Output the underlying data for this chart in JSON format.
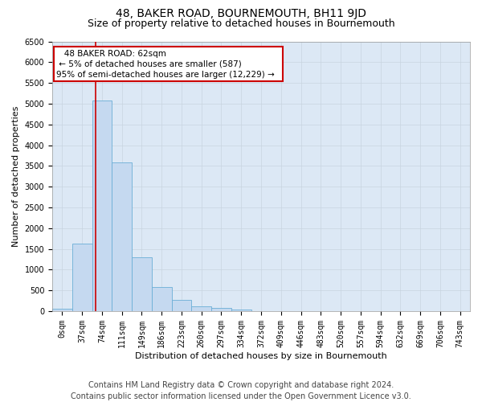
{
  "title": "48, BAKER ROAD, BOURNEMOUTH, BH11 9JD",
  "subtitle": "Size of property relative to detached houses in Bournemouth",
  "xlabel": "Distribution of detached houses by size in Bournemouth",
  "ylabel": "Number of detached properties",
  "annotation_line1": "48 BAKER ROAD: 62sqm",
  "annotation_line2": "← 5% of detached houses are smaller (587)",
  "annotation_line3": "95% of semi-detached houses are larger (12,229) →",
  "footer1": "Contains HM Land Registry data © Crown copyright and database right 2024.",
  "footer2": "Contains public sector information licensed under the Open Government Licence v3.0.",
  "bar_color": "#c5d9f0",
  "bar_edge_color": "#6baed6",
  "grid_color": "#c8d4e0",
  "annotation_box_color": "#ffffff",
  "annotation_box_edge": "#cc0000",
  "vline_color": "#cc0000",
  "categories": [
    "0sqm",
    "37sqm",
    "74sqm",
    "111sqm",
    "149sqm",
    "186sqm",
    "223sqm",
    "260sqm",
    "297sqm",
    "334sqm",
    "372sqm",
    "409sqm",
    "446sqm",
    "483sqm",
    "520sqm",
    "557sqm",
    "594sqm",
    "632sqm",
    "669sqm",
    "706sqm",
    "743sqm"
  ],
  "values": [
    60,
    1620,
    5080,
    3580,
    1290,
    590,
    270,
    115,
    75,
    40,
    0,
    0,
    0,
    0,
    0,
    0,
    0,
    0,
    0,
    0,
    0
  ],
  "ylim": [
    0,
    6500
  ],
  "yticks": [
    0,
    500,
    1000,
    1500,
    2000,
    2500,
    3000,
    3500,
    4000,
    4500,
    5000,
    5500,
    6000,
    6500
  ],
  "background_color": "#ffffff",
  "plot_bg_color": "#dce8f5",
  "title_fontsize": 10,
  "subtitle_fontsize": 9,
  "tick_fontsize": 7,
  "label_fontsize": 8,
  "annotation_fontsize": 7.5,
  "footer_fontsize": 7
}
